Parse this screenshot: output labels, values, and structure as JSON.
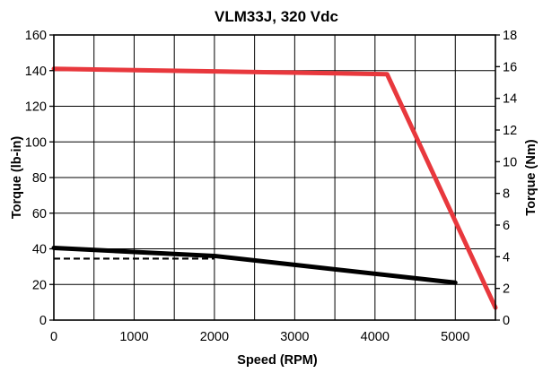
{
  "chart_data": {
    "type": "line",
    "title": "VLM33J, 320 Vdc",
    "xlabel": "Speed  (RPM)",
    "ylabel": "Torque (lb-in)",
    "ylabel_right": "Torque (Nm)",
    "xlim": [
      0,
      5500
    ],
    "ylim": [
      0,
      160
    ],
    "ylim_right": [
      0,
      18
    ],
    "x_ticks": [
      0,
      1000,
      2000,
      3000,
      4000,
      5000
    ],
    "y_ticks": [
      0,
      20,
      40,
      60,
      80,
      100,
      120,
      140,
      160
    ],
    "y_ticks_right": [
      0,
      2,
      4,
      6,
      8,
      10,
      12,
      14,
      16,
      18
    ],
    "grid": true,
    "series": [
      {
        "color": "#e8383d",
        "style": "solid",
        "x": [
          0,
          4150,
          5500
        ],
        "y": [
          141,
          138,
          7
        ]
      },
      {
        "color": "#000000",
        "style": "solid",
        "x": [
          0,
          2000,
          3000,
          5000
        ],
        "y": [
          40.5,
          36,
          31,
          21
        ]
      },
      {
        "color": "#000000",
        "style": "dashed",
        "x": [
          0,
          2000
        ],
        "y": [
          34.5,
          34.5
        ]
      }
    ]
  }
}
